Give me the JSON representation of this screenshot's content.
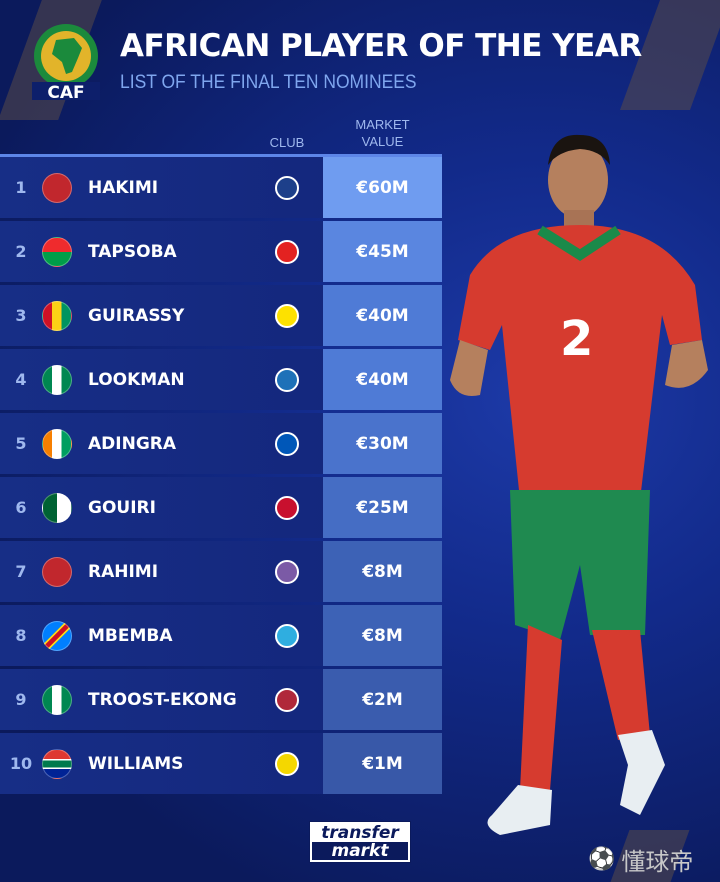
{
  "header": {
    "title": "AFRICAN PLAYER OF THE YEAR",
    "subtitle": "LIST OF THE FINAL TEN NOMINEES",
    "logo_text": "CAF"
  },
  "columns": {
    "club": "CLUB",
    "market_value_line1": "MARKET",
    "market_value_line2": "VALUE"
  },
  "rows": [
    {
      "rank": "1",
      "name": "HAKIMI",
      "flag": "morocco",
      "club": "psg-crest",
      "value": "€60M",
      "color": "#6f9cf0"
    },
    {
      "rank": "2",
      "name": "TAPSOBA",
      "flag": "burkina-faso",
      "club": "leverkusen-crest",
      "value": "€45M",
      "color": "#5a86e0"
    },
    {
      "rank": "3",
      "name": "GUIRASSY",
      "flag": "guinea",
      "club": "dortmund-crest",
      "value": "€40M",
      "color": "#4f7bd6"
    },
    {
      "rank": "4",
      "name": "LOOKMAN",
      "flag": "nigeria",
      "club": "atalanta-crest",
      "value": "€40M",
      "color": "#4f7bd6"
    },
    {
      "rank": "5",
      "name": "ADINGRA",
      "flag": "ivory-coast",
      "club": "brighton-crest",
      "value": "€30M",
      "color": "#4a73cc"
    },
    {
      "rank": "6",
      "name": "GOUIRI",
      "flag": "algeria",
      "club": "rennes-crest",
      "value": "€25M",
      "color": "#456dc4"
    },
    {
      "rank": "7",
      "name": "RAHIMI",
      "flag": "morocco",
      "club": "al-ain-crest",
      "value": "€8M",
      "color": "#3d62b6"
    },
    {
      "rank": "8",
      "name": "MBEMBA",
      "flag": "dr-congo",
      "club": "marseille-crest",
      "value": "€8M",
      "color": "#3d62b6"
    },
    {
      "rank": "9",
      "name": "TROOST-EKONG",
      "flag": "nigeria",
      "club": "al-kholood-crest",
      "value": "€2M",
      "color": "#3a5cae"
    },
    {
      "rank": "10",
      "name": "WILLIAMS",
      "flag": "south-africa",
      "club": "sundowns-crest",
      "value": "€1M",
      "color": "#3858a8"
    }
  ],
  "footer": {
    "brand_line1": "transfer",
    "brand_line2": "markt",
    "watermark": "懂球帝"
  }
}
